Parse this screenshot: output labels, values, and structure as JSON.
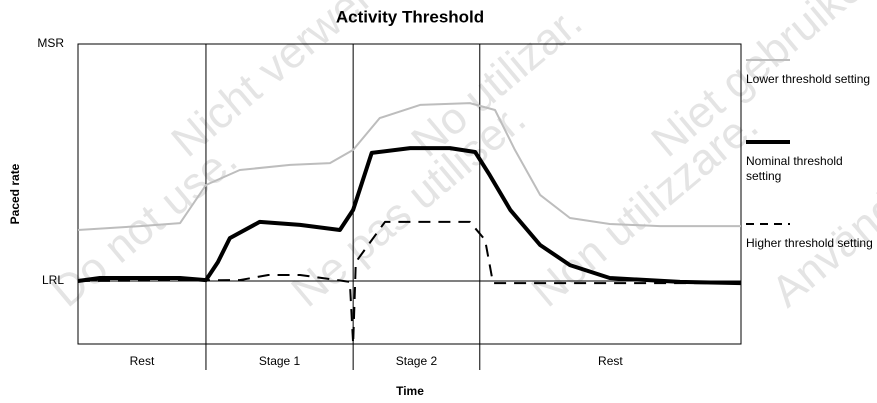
{
  "chart_data": {
    "type": "line",
    "title": "Activity Threshold",
    "xlabel": "Time",
    "ylabel": "Paced rate",
    "xlim": [
      0,
      100
    ],
    "ylim": [
      0,
      100
    ],
    "yticks": [
      {
        "value": 21,
        "label": "LRL"
      },
      {
        "value": 100,
        "label": "MSR"
      }
    ],
    "stages": [
      "Rest",
      "Stage 1",
      "Stage 2",
      "Rest"
    ],
    "stage_bounds": [
      0,
      19.3,
      41.5,
      60.6,
      100
    ],
    "watermark": [
      "Do not use.",
      "Nicht verwenden.",
      "Ne pas utiliser.",
      "No utilizar.",
      "Non utilizzare.",
      "Niet gebruiken.",
      "Använd ej."
    ],
    "series": [
      {
        "name": "Lower threshold setting",
        "color": "#bdbdbd",
        "style": "solid",
        "width": 2,
        "x": [
          0,
          9.4,
          15.4,
          19.3,
          24.4,
          32,
          38,
          41.5,
          45.5,
          51.6,
          59.1,
          62.9,
          65.9,
          69.7,
          74.2,
          80.2,
          87.8,
          100
        ],
        "values": [
          38,
          39.3,
          40.3,
          53,
          58,
          59.7,
          60.3,
          64.7,
          75.3,
          79.7,
          80.3,
          78,
          64.7,
          49.7,
          42,
          40,
          39.3,
          39.3
        ]
      },
      {
        "name": "Nominal threshold setting",
        "color": "#000000",
        "style": "solid",
        "width": 4,
        "x": [
          0,
          3.3,
          15.4,
          19.3,
          21.1,
          22.9,
          27.4,
          33.5,
          39.5,
          41.5,
          44.3,
          50.1,
          56.1,
          59.9,
          62.1,
          65.2,
          69.7,
          74.2,
          80.2,
          90.8,
          100
        ],
        "values": [
          21,
          22,
          22,
          21.3,
          27.3,
          35.3,
          40.7,
          39.7,
          38,
          44.7,
          63.7,
          65.3,
          65.3,
          64,
          56.3,
          44.7,
          33,
          26.3,
          22,
          20.7,
          20.3
        ]
      },
      {
        "name": "Higher threshold setting",
        "color": "#000000",
        "style": "dashed",
        "width": 2,
        "x": [
          0,
          24.4,
          28.7,
          33.5,
          41,
          41.5,
          41.9,
          46.3,
          59.1,
          61.4,
          62.6,
          100
        ],
        "values": [
          21,
          21.3,
          23,
          23,
          20.7,
          0,
          27.3,
          40.7,
          40.7,
          34.7,
          20.3,
          20.3
        ]
      }
    ]
  }
}
